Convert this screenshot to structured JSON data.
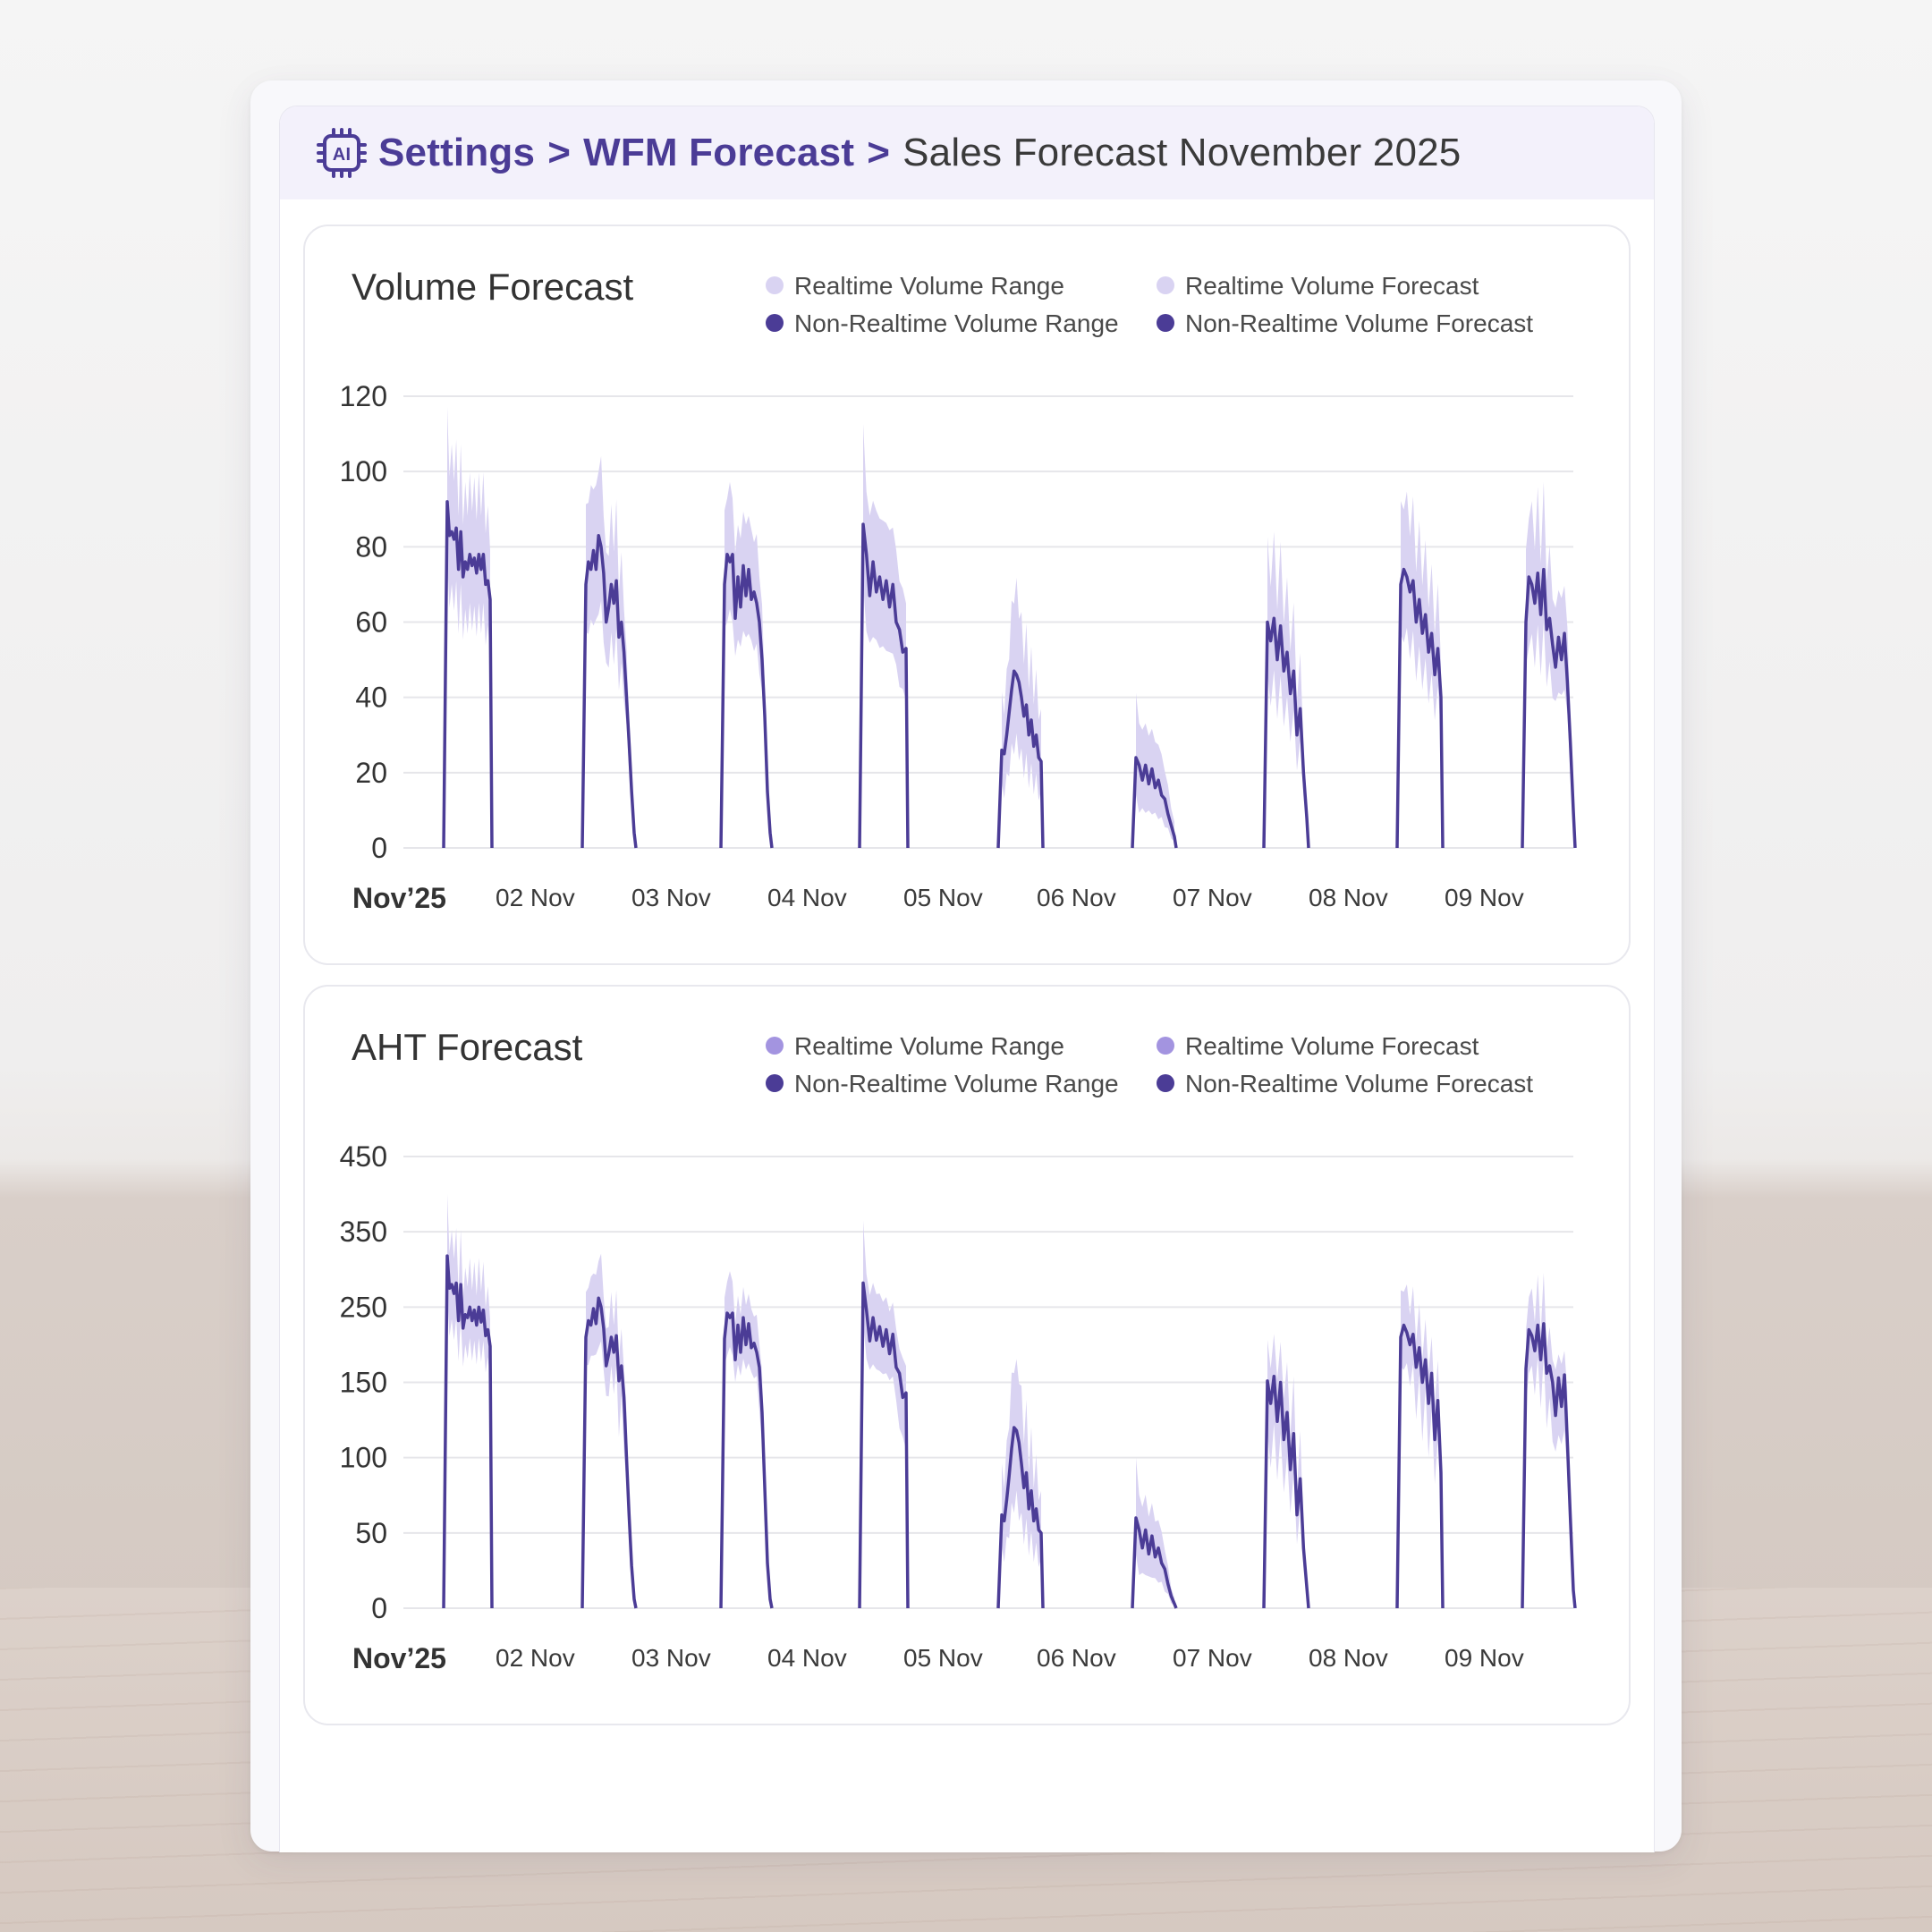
{
  "breadcrumb": {
    "items": [
      "Settings",
      "WFM Forecast"
    ],
    "separator": ">",
    "current": "Sales Forecast November 2025",
    "icon": "ai-chip-icon"
  },
  "colors": {
    "accent": "#4b3c96",
    "band_light": "#d9d3f2",
    "line": "#4b3c96",
    "legend_light": "#d9d3f2",
    "legend_medium": "#a394e0",
    "legend_dark": "#4b3c96"
  },
  "chart_data": [
    {
      "type": "area",
      "title": "Volume Forecast",
      "legend": [
        {
          "label": "Realtime Volume Range",
          "color": "#d9d3f2"
        },
        {
          "label": "Realtime Volume Forecast",
          "color": "#d9d3f2"
        },
        {
          "label": "Non-Realtime Volume Range",
          "color": "#4b3c96"
        },
        {
          "label": "Non-Realtime Volume Forecast",
          "color": "#4b3c96"
        }
      ],
      "y_ticks": [
        0,
        20,
        40,
        60,
        80,
        100,
        120
      ],
      "ylim": [
        0,
        120
      ],
      "x_ticks": [
        {
          "day": "Nov’25",
          "month": "",
          "bold": true
        },
        {
          "day": "02",
          "month": "Nov"
        },
        {
          "day": "03",
          "month": "Nov"
        },
        {
          "day": "04",
          "month": "Nov"
        },
        {
          "day": "05",
          "month": "Nov"
        },
        {
          "day": "06",
          "month": "Nov"
        },
        {
          "day": "07",
          "month": "Nov"
        },
        {
          "day": "08",
          "month": "Nov"
        },
        {
          "day": "09",
          "month": "Nov"
        }
      ],
      "days": [
        {
          "forecast": [
            92,
            83,
            84,
            82,
            85,
            74,
            84,
            72,
            76,
            74,
            78,
            75,
            77,
            73,
            78,
            74,
            78,
            70,
            71,
            66
          ],
          "band_spread": 0.22
        },
        {
          "forecast": [
            70,
            76,
            74,
            79,
            74,
            83,
            80,
            73,
            60,
            64,
            70,
            65,
            71,
            56,
            60,
            52,
            40,
            28,
            15,
            4
          ],
          "band_spread": 0.24
        },
        {
          "forecast": [
            70,
            78,
            76,
            78,
            61,
            72,
            64,
            75,
            67,
            74,
            66,
            68,
            65,
            60,
            50,
            35,
            15,
            4
          ],
          "band_spread": 0.22
        },
        {
          "forecast": [
            86,
            78,
            67,
            76,
            68,
            72,
            66,
            71,
            64,
            70,
            60,
            58,
            52,
            53
          ],
          "band_spread": 0.25
        },
        {
          "forecast": [
            26,
            25,
            30,
            36,
            42,
            47,
            46,
            44,
            40,
            35,
            38,
            30,
            34,
            27,
            30,
            24,
            23
          ],
          "band_spread": 0.45
        },
        {
          "forecast": [
            24,
            22,
            18,
            22,
            17,
            21,
            16,
            18,
            14,
            13,
            9,
            6,
            3
          ],
          "band_spread": 0.55
        },
        {
          "forecast": [
            60,
            55,
            61,
            50,
            59,
            47,
            52,
            41,
            47,
            30,
            37,
            20,
            8
          ],
          "band_spread": 0.3
        },
        {
          "forecast": [
            70,
            74,
            72,
            68,
            71,
            60,
            66,
            57,
            62,
            52,
            57,
            46,
            53,
            40
          ],
          "band_spread": 0.25
        },
        {
          "forecast": [
            60,
            72,
            70,
            65,
            73,
            62,
            74,
            58,
            61,
            54,
            48,
            56,
            50,
            57,
            44,
            28,
            10
          ],
          "band_spread": 0.25
        }
      ]
    },
    {
      "type": "area",
      "title": "AHT Forecast",
      "legend": [
        {
          "label": "Realtime Volume Range",
          "color": "#a394e0"
        },
        {
          "label": "Realtime Volume Forecast",
          "color": "#a394e0"
        },
        {
          "label": "Non-Realtime Volume Range",
          "color": "#4b3c96"
        },
        {
          "label": "Non-Realtime Volume Forecast",
          "color": "#4b3c96"
        }
      ],
      "y_ticks": [
        0,
        50,
        100,
        150,
        250,
        350,
        450
      ],
      "ylim": [
        0,
        450
      ],
      "x_ticks": [
        {
          "day": "Nov’25",
          "month": "",
          "bold": true
        },
        {
          "day": "02",
          "month": "Nov"
        },
        {
          "day": "03",
          "month": "Nov"
        },
        {
          "day": "04",
          "month": "Nov"
        },
        {
          "day": "05",
          "month": "Nov"
        },
        {
          "day": "06",
          "month": "Nov"
        },
        {
          "day": "07",
          "month": "Nov"
        },
        {
          "day": "08",
          "month": "Nov"
        },
        {
          "day": "09",
          "month": "Nov"
        }
      ],
      "days": [
        {
          "forecast": [
            318,
            275,
            280,
            268,
            282,
            232,
            280,
            222,
            240,
            236,
            250,
            232,
            246,
            226,
            250,
            230,
            246,
            212,
            220,
            198
          ],
          "band_spread": 0.22
        },
        {
          "forecast": [
            210,
            232,
            226,
            248,
            228,
            262,
            250,
            222,
            172,
            188,
            210,
            190,
            212,
            152,
            172,
            140,
            100,
            62,
            28,
            6
          ],
          "band_spread": 0.24
        },
        {
          "forecast": [
            208,
            242,
            236,
            242,
            180,
            226,
            190,
            236,
            200,
            228,
            196,
            202,
            190,
            170,
            130,
            80,
            30,
            6
          ],
          "band_spread": 0.22
        },
        {
          "forecast": [
            282,
            246,
            205,
            236,
            206,
            224,
            198,
            220,
            188,
            214,
            170,
            162,
            140,
            143
          ],
          "band_spread": 0.25
        },
        {
          "forecast": [
            62,
            58,
            72,
            88,
            106,
            120,
            118,
            110,
            96,
            80,
            90,
            66,
            78,
            58,
            66,
            52,
            50
          ],
          "band_spread": 0.45
        },
        {
          "forecast": [
            60,
            52,
            40,
            52,
            36,
            48,
            34,
            40,
            30,
            26,
            16,
            8,
            3
          ],
          "band_spread": 0.55
        },
        {
          "forecast": [
            152,
            136,
            158,
            124,
            150,
            112,
            130,
            92,
            116,
            62,
            86,
            40,
            14
          ],
          "band_spread": 0.3
        },
        {
          "forecast": [
            210,
            226,
            216,
            200,
            214,
            170,
            196,
            150,
            180,
            136,
            162,
            112,
            138,
            90
          ],
          "band_spread": 0.25
        },
        {
          "forecast": [
            168,
            220,
            212,
            192,
            226,
            180,
            228,
            162,
            172,
            150,
            128,
            156,
            134,
            160,
            110,
            60,
            12
          ],
          "band_spread": 0.25
        }
      ]
    }
  ]
}
